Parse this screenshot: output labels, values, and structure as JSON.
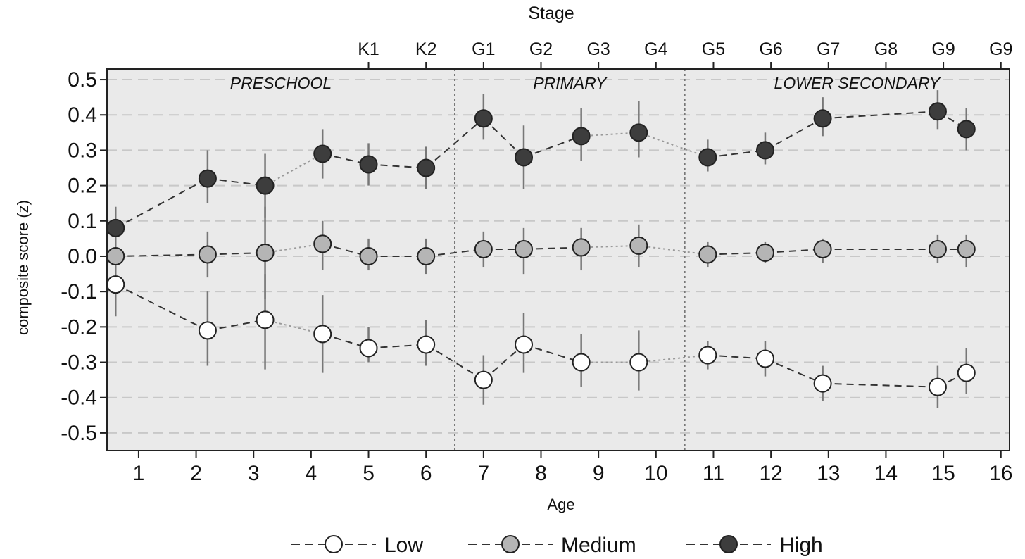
{
  "chart_data": {
    "type": "line",
    "xlabel": "Age",
    "ylabel": "composite score (z)",
    "top_axis_title": "Stage",
    "xlim": [
      0.45,
      16.15
    ],
    "ylim": [
      -0.55,
      0.53
    ],
    "x_ticks": [
      1,
      2,
      3,
      4,
      5,
      6,
      7,
      8,
      9,
      10,
      11,
      12,
      13,
      14,
      15,
      16
    ],
    "y_ticks": [
      0.5,
      0.4,
      0.3,
      0.2,
      0.1,
      0.0,
      -0.1,
      -0.2,
      -0.3,
      -0.4,
      -0.5
    ],
    "y_tick_labels": [
      "0.5",
      "0.4",
      "0.3",
      "0.2",
      "0.1",
      "0.0",
      "-0.1",
      "-0.2",
      "-0.3",
      "-0.4",
      "-0.5"
    ],
    "top_ticks": [
      {
        "x": 5,
        "label": "K1"
      },
      {
        "x": 6,
        "label": "K2"
      },
      {
        "x": 7,
        "label": "G1"
      },
      {
        "x": 8,
        "label": "G2"
      },
      {
        "x": 9,
        "label": "G3"
      },
      {
        "x": 10,
        "label": "G4"
      },
      {
        "x": 11,
        "label": "G5"
      },
      {
        "x": 12,
        "label": "G6"
      },
      {
        "x": 13,
        "label": "G7"
      },
      {
        "x": 14,
        "label": "G8"
      },
      {
        "x": 15,
        "label": "G9"
      },
      {
        "x": 16,
        "label": "G9"
      }
    ],
    "regions": [
      {
        "label": "PRESCHOOL",
        "x_start": 0.45,
        "x_end": 6.5
      },
      {
        "label": "PRIMARY",
        "x_start": 6.5,
        "x_end": 10.5
      },
      {
        "label": "LOWER SECONDARY",
        "x_start": 10.5,
        "x_end": 16.15
      }
    ],
    "region_dividers": [
      6.5,
      10.5
    ],
    "grid": "horizontal dashed",
    "legend_position": "bottom",
    "series": [
      {
        "name": "Low",
        "fill": "#ffffff",
        "x": [
          0.6,
          2.2,
          3.2,
          4.2,
          5.0,
          6.0,
          7.0,
          7.7,
          8.7,
          9.7,
          10.9,
          11.9,
          12.9,
          14.9,
          15.4
        ],
        "y": [
          -0.08,
          -0.21,
          -0.18,
          -0.22,
          -0.26,
          -0.25,
          -0.35,
          -0.25,
          -0.3,
          -0.3,
          -0.28,
          -0.29,
          -0.36,
          -0.37,
          -0.33
        ],
        "err_low": [
          -0.17,
          -0.31,
          -0.32,
          -0.33,
          -0.3,
          -0.31,
          -0.42,
          -0.33,
          -0.37,
          -0.38,
          -0.32,
          -0.34,
          -0.41,
          -0.43,
          -0.39
        ],
        "err_high": [
          -0.01,
          -0.1,
          -0.05,
          -0.11,
          -0.2,
          -0.18,
          -0.28,
          -0.16,
          -0.22,
          -0.21,
          -0.24,
          -0.24,
          -0.31,
          -0.31,
          -0.26
        ]
      },
      {
        "name": "Medium",
        "fill": "#b5b5b5",
        "x": [
          0.6,
          2.2,
          3.2,
          4.2,
          5.0,
          6.0,
          7.0,
          7.7,
          8.7,
          9.7,
          10.9,
          11.9,
          12.9,
          14.9,
          15.4
        ],
        "y": [
          0.0,
          0.005,
          0.01,
          0.035,
          0.0,
          0.0,
          0.02,
          0.02,
          0.025,
          0.03,
          0.005,
          0.01,
          0.02,
          0.02,
          0.02
        ],
        "err_low": [
          -0.04,
          -0.06,
          -0.12,
          -0.04,
          -0.04,
          -0.05,
          -0.03,
          -0.05,
          -0.04,
          -0.03,
          -0.03,
          -0.02,
          -0.02,
          -0.02,
          -0.03
        ],
        "err_high": [
          0.05,
          0.07,
          0.14,
          0.1,
          0.05,
          0.05,
          0.07,
          0.08,
          0.08,
          0.09,
          0.04,
          0.04,
          0.05,
          0.06,
          0.06
        ]
      },
      {
        "name": "High",
        "fill": "#3d3d3d",
        "x": [
          0.6,
          2.2,
          3.2,
          4.2,
          5.0,
          6.0,
          7.0,
          7.7,
          8.7,
          9.7,
          10.9,
          11.9,
          12.9,
          14.9,
          15.4
        ],
        "y": [
          0.08,
          0.22,
          0.2,
          0.29,
          0.26,
          0.25,
          0.39,
          0.28,
          0.34,
          0.35,
          0.28,
          0.3,
          0.39,
          0.41,
          0.36
        ],
        "err_low": [
          0.03,
          0.15,
          0.11,
          0.22,
          0.2,
          0.19,
          0.33,
          0.19,
          0.27,
          0.28,
          0.24,
          0.26,
          0.34,
          0.36,
          0.3
        ],
        "err_high": [
          0.14,
          0.3,
          0.29,
          0.36,
          0.32,
          0.31,
          0.46,
          0.37,
          0.42,
          0.44,
          0.33,
          0.35,
          0.45,
          0.47,
          0.42
        ]
      }
    ],
    "segment_styles": [
      "dashed",
      "dashed",
      "dotted",
      "dashed",
      "dashed",
      "dashed",
      "dashed",
      "dashed",
      "dotted",
      "dotted",
      "dashed",
      "dashed",
      "dashed",
      "dashed"
    ]
  }
}
